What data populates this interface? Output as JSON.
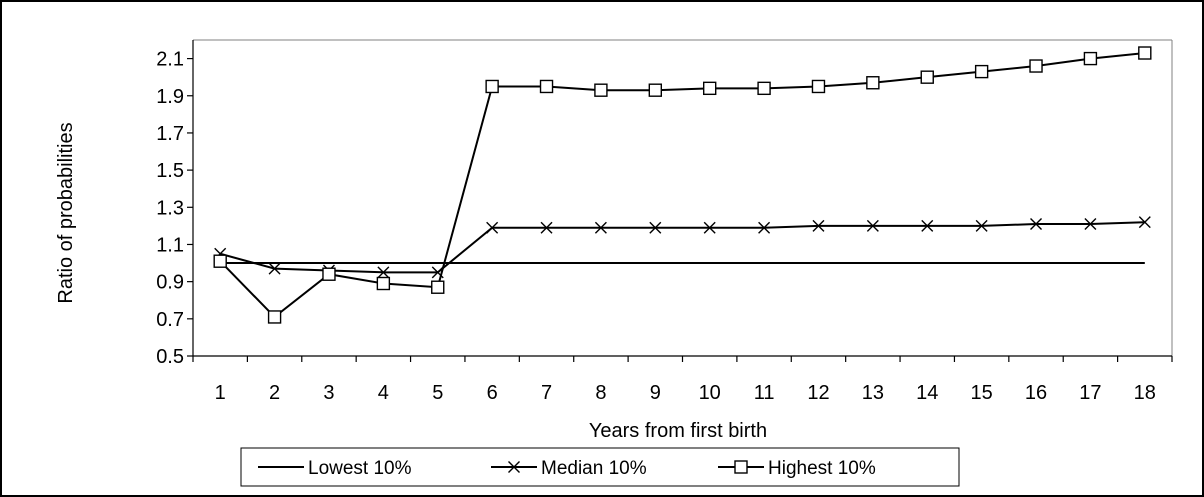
{
  "chart_data": {
    "type": "line",
    "xlabel": "Years from first birth",
    "ylabel": "Ratio of probabilities",
    "ylim": [
      0.5,
      2.2
    ],
    "y_ticks": [
      0.5,
      0.7,
      0.9,
      1.1,
      1.3,
      1.5,
      1.7,
      1.9,
      2.1
    ],
    "y_tick_labels": [
      "0.5",
      "0.7",
      "0.9",
      "1.1",
      "1.3",
      "1.5",
      "1.7",
      "1.9",
      "2.1"
    ],
    "categories": [
      "1",
      "2",
      "3",
      "4",
      "5",
      "6",
      "7",
      "8",
      "9",
      "10",
      "11",
      "12",
      "13",
      "14",
      "15",
      "16",
      "17",
      "18"
    ],
    "grid": false,
    "legend_position": "bottom",
    "series": [
      {
        "name": "Lowest 10%",
        "marker": "none",
        "values": [
          1.0,
          1.0,
          1.0,
          1.0,
          1.0,
          1.0,
          1.0,
          1.0,
          1.0,
          1.0,
          1.0,
          1.0,
          1.0,
          1.0,
          1.0,
          1.0,
          1.0,
          1.0
        ]
      },
      {
        "name": "Median 10%",
        "marker": "x",
        "values": [
          1.05,
          0.97,
          0.96,
          0.95,
          0.95,
          1.19,
          1.19,
          1.19,
          1.19,
          1.19,
          1.19,
          1.2,
          1.2,
          1.2,
          1.2,
          1.21,
          1.21,
          1.22
        ]
      },
      {
        "name": "Highest 10%",
        "marker": "square",
        "values": [
          1.01,
          0.71,
          0.94,
          0.89,
          0.87,
          1.95,
          1.95,
          1.93,
          1.93,
          1.94,
          1.94,
          1.95,
          1.97,
          2.0,
          2.03,
          2.06,
          2.1,
          2.13
        ]
      }
    ]
  },
  "colors": {
    "line": "#000000",
    "background": "#ffffff"
  }
}
